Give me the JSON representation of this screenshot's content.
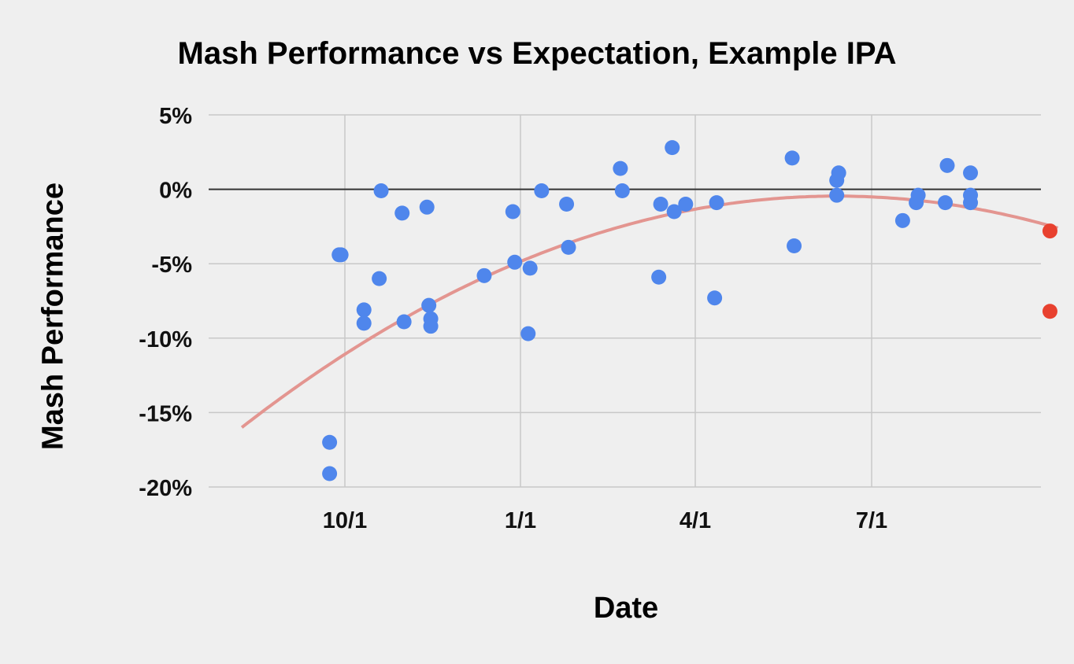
{
  "chart_data": {
    "type": "scatter",
    "title": "Mash Performance vs Expectation, Example IPA",
    "xlabel": "Date",
    "ylabel": "Mash Performance",
    "x_ticks": [
      "10/1",
      "1/1",
      "4/1",
      "7/1"
    ],
    "y_ticks": [
      "5%",
      "0%",
      "-5%",
      "-10%",
      "-15%",
      "-20%"
    ],
    "ylim": [
      -20,
      5
    ],
    "xlim": [
      "2019-08-08",
      "2020-10-05"
    ],
    "grid": true,
    "legend": "none",
    "colors": {
      "background": "#efefef",
      "grid": "#c8c8c8",
      "zero_line": "#333333",
      "points": "#4f86ec",
      "highlight_points": "#e8412f",
      "trendline": "#e39590"
    },
    "series": [
      {
        "color": "#4f86ec",
        "points": [
          {
            "x": "2019-09-23",
            "y": -17.0
          },
          {
            "x": "2019-09-23",
            "y": -19.1
          },
          {
            "x": "2019-09-28",
            "y": -4.4
          },
          {
            "x": "2019-09-29",
            "y": -4.4
          },
          {
            "x": "2019-10-11",
            "y": -8.1
          },
          {
            "x": "2019-10-11",
            "y": -9.0
          },
          {
            "x": "2019-10-19",
            "y": -6.0
          },
          {
            "x": "2019-10-20",
            "y": -0.1
          },
          {
            "x": "2019-10-31",
            "y": -1.6
          },
          {
            "x": "2019-11-01",
            "y": -8.9
          },
          {
            "x": "2019-11-13",
            "y": -1.2
          },
          {
            "x": "2019-11-14",
            "y": -7.8
          },
          {
            "x": "2019-11-15",
            "y": -8.7
          },
          {
            "x": "2019-11-15",
            "y": -9.2
          },
          {
            "x": "2019-12-13",
            "y": -5.8
          },
          {
            "x": "2019-12-28",
            "y": -1.5
          },
          {
            "x": "2019-12-29",
            "y": -4.9
          },
          {
            "x": "2020-01-05",
            "y": -9.7
          },
          {
            "x": "2020-01-06",
            "y": -5.3
          },
          {
            "x": "2020-01-12",
            "y": -0.1
          },
          {
            "x": "2020-01-25",
            "y": -1.0
          },
          {
            "x": "2020-01-26",
            "y": -3.9
          },
          {
            "x": "2020-02-22",
            "y": 1.4
          },
          {
            "x": "2020-02-23",
            "y": -0.1
          },
          {
            "x": "2020-03-13",
            "y": -5.9
          },
          {
            "x": "2020-03-14",
            "y": -1.0
          },
          {
            "x": "2020-03-20",
            "y": 2.8
          },
          {
            "x": "2020-03-21",
            "y": -1.5
          },
          {
            "x": "2020-03-27",
            "y": -1.0
          },
          {
            "x": "2020-04-11",
            "y": -7.3
          },
          {
            "x": "2020-04-12",
            "y": -0.9
          },
          {
            "x": "2020-05-21",
            "y": 2.1
          },
          {
            "x": "2020-05-22",
            "y": -3.8
          },
          {
            "x": "2020-06-13",
            "y": 0.6
          },
          {
            "x": "2020-06-13",
            "y": -0.4
          },
          {
            "x": "2020-06-14",
            "y": 1.1
          },
          {
            "x": "2020-07-17",
            "y": -2.1
          },
          {
            "x": "2020-07-24",
            "y": -0.9
          },
          {
            "x": "2020-07-25",
            "y": -0.4
          },
          {
            "x": "2020-08-08",
            "y": -0.9
          },
          {
            "x": "2020-08-09",
            "y": 1.6
          },
          {
            "x": "2020-08-21",
            "y": 1.1
          },
          {
            "x": "2020-08-21",
            "y": -0.4
          },
          {
            "x": "2020-08-21",
            "y": -0.9
          }
        ]
      },
      {
        "color": "#e8412f",
        "points": [
          {
            "x": "2020-10-01",
            "y": -2.8
          },
          {
            "x": "2020-10-01",
            "y": -8.2
          }
        ]
      }
    ],
    "trendline": {
      "type": "polynomial",
      "color": "#e39590",
      "points": [
        {
          "x": "2019-08-08",
          "y": -16.0
        },
        {
          "x": "2020-05-28",
          "y": -0.5
        },
        {
          "x": "2020-10-05",
          "y": -2.6
        }
      ]
    }
  }
}
